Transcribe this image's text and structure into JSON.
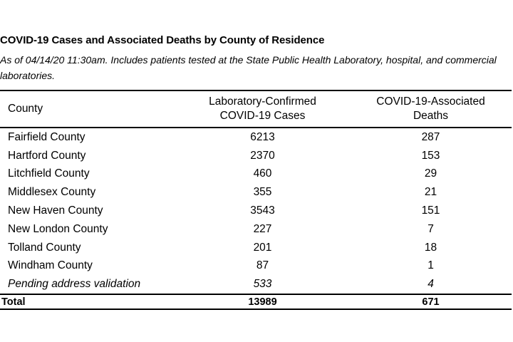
{
  "title": "COVID-19 Cases and Associated Deaths by County of Residence",
  "subtitle": "As of 04/14/20 11:30am. Includes patients tested at the State Public Health Laboratory, hospital, and commercial laboratories.",
  "table": {
    "headers": {
      "county": "County",
      "cases_line1": "Laboratory-Confirmed",
      "cases_line2": "COVID-19 Cases",
      "deaths_line1": "COVID-19-Associated",
      "deaths_line2": "Deaths"
    },
    "rows": [
      {
        "county": "Fairfield County",
        "cases": "6213",
        "deaths": "287"
      },
      {
        "county": "Hartford County",
        "cases": "2370",
        "deaths": "153"
      },
      {
        "county": "Litchfield County",
        "cases": "460",
        "deaths": "29"
      },
      {
        "county": "Middlesex County",
        "cases": "355",
        "deaths": "21"
      },
      {
        "county": "New Haven County",
        "cases": "3543",
        "deaths": "151"
      },
      {
        "county": "New London County",
        "cases": "227",
        "deaths": "7"
      },
      {
        "county": "Tolland County",
        "cases": "201",
        "deaths": "18"
      },
      {
        "county": "Windham County",
        "cases": "87",
        "deaths": "1"
      },
      {
        "county": "Pending address validation",
        "cases": "533",
        "deaths": "4"
      }
    ],
    "total": {
      "county": "Total",
      "cases": "13989",
      "deaths": "671"
    }
  }
}
